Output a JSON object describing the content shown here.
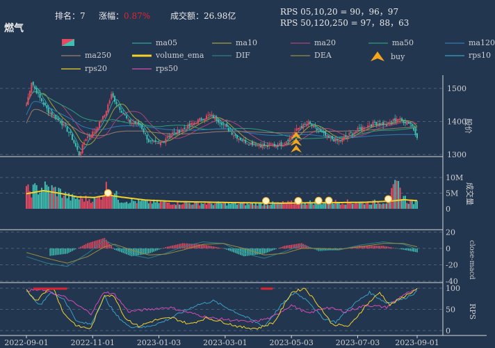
{
  "header": {
    "rank_label": "排名：",
    "rank_value": "7",
    "change_label": "涨幅：",
    "change_value": "0.87%",
    "turnover_label": "成交额：",
    "turnover_value": "26.98亿",
    "rps_line1": "RPS 05,10,20 = 90，96，97",
    "rps_line2": "RPS 50,120,250 = 97，88，63"
  },
  "chart_title": "燃气",
  "colors": {
    "background": "#233650",
    "up": "#e8485f",
    "down": "#3fbfb0",
    "change_red": "#e0242f",
    "volume_ema": "#f5d22a",
    "buy": "#f4a71d"
  },
  "legend": [
    {
      "label": "",
      "color": "#e8485f",
      "kind": "box"
    },
    {
      "label": "ma05",
      "color": "#2fa7a0",
      "kind": "line"
    },
    {
      "label": "ma10",
      "color": "#a3a23a",
      "kind": "line"
    },
    {
      "label": "ma20",
      "color": "#b2427a",
      "kind": "line"
    },
    {
      "label": "ma50",
      "color": "#2aa178",
      "kind": "line"
    },
    {
      "label": "ma120",
      "color": "#2f7bb8",
      "kind": "line"
    },
    {
      "label": "ma250",
      "color": "#9c7c6d",
      "kind": "line"
    },
    {
      "label": "volume_ema",
      "color": "#f5d22a",
      "kind": "thick"
    },
    {
      "label": "DIF",
      "color": "#2b7f8c",
      "kind": "line"
    },
    {
      "label": "DEA",
      "color": "#9a8c3c",
      "kind": "line"
    },
    {
      "label": "buy",
      "color": "#f4a71d",
      "kind": "marker"
    },
    {
      "label": "rps10",
      "color": "#3aa0c8",
      "kind": "line"
    },
    {
      "label": "rps20",
      "color": "#f5d22a",
      "kind": "line"
    },
    {
      "label": "rps50",
      "color": "#d84ab8",
      "kind": "line"
    }
  ],
  "chart_data": {
    "type": "candlestick",
    "x_ticks": [
      "2022-09-01",
      "2022-11-01",
      "2023-01-03",
      "2023-03-01",
      "2023-05-03",
      "2023-07-03",
      "2023-09-01"
    ],
    "price_axis": {
      "label": "股价",
      "ticks": [
        1300,
        1400,
        1500
      ],
      "ylim": [
        1260,
        1540
      ]
    },
    "volume_axis": {
      "label": "成交量",
      "ticks": [
        "0",
        "5M",
        "10M"
      ],
      "ylim": [
        0,
        10
      ]
    },
    "macd_axis": {
      "label": "close-macd",
      "ticks": [
        20,
        0,
        -20,
        -40
      ],
      "ylim": [
        -40,
        22
      ]
    },
    "rps_axis": {
      "label": "RPS",
      "ticks": [
        100,
        50,
        0
      ],
      "ylim": [
        -5,
        110
      ]
    },
    "price_anchors": [
      [
        0,
        1450
      ],
      [
        3,
        1520
      ],
      [
        8,
        1470
      ],
      [
        13,
        1430
      ],
      [
        20,
        1400
      ],
      [
        26,
        1360
      ],
      [
        31,
        1300
      ],
      [
        35,
        1350
      ],
      [
        40,
        1370
      ],
      [
        46,
        1420
      ],
      [
        50,
        1480
      ],
      [
        55,
        1440
      ],
      [
        60,
        1400
      ],
      [
        67,
        1390
      ],
      [
        72,
        1340
      ],
      [
        78,
        1330
      ],
      [
        84,
        1360
      ],
      [
        92,
        1375
      ],
      [
        100,
        1400
      ],
      [
        108,
        1420
      ],
      [
        115,
        1395
      ],
      [
        122,
        1360
      ],
      [
        128,
        1340
      ],
      [
        135,
        1330
      ],
      [
        142,
        1325
      ],
      [
        150,
        1330
      ],
      [
        155,
        1350
      ],
      [
        160,
        1380
      ],
      [
        166,
        1395
      ],
      [
        172,
        1370
      ],
      [
        178,
        1350
      ],
      [
        184,
        1340
      ],
      [
        190,
        1360
      ],
      [
        197,
        1380
      ],
      [
        205,
        1395
      ],
      [
        212,
        1390
      ],
      [
        218,
        1410
      ],
      [
        222,
        1400
      ],
      [
        226,
        1395
      ],
      [
        230,
        1355
      ]
    ],
    "volume_anchors": [
      [
        0,
        5.5
      ],
      [
        10,
        6.8
      ],
      [
        18,
        5.8
      ],
      [
        26,
        3.5
      ],
      [
        35,
        3.2
      ],
      [
        42,
        3.0
      ],
      [
        48,
        7.5
      ],
      [
        55,
        2.8
      ],
      [
        70,
        2.2
      ],
      [
        100,
        1.8
      ],
      [
        140,
        1.6
      ],
      [
        160,
        2.0
      ],
      [
        185,
        2.2
      ],
      [
        200,
        2.0
      ],
      [
        212,
        2.3
      ],
      [
        218,
        7.5
      ],
      [
        224,
        2.5
      ],
      [
        230,
        2.0
      ]
    ],
    "volume_ema_anchors": [
      [
        0,
        4.8
      ],
      [
        10,
        5.8
      ],
      [
        20,
        4.9
      ],
      [
        30,
        3.8
      ],
      [
        40,
        3.6
      ],
      [
        48,
        4.4
      ],
      [
        55,
        3.8
      ],
      [
        70,
        2.8
      ],
      [
        90,
        2.3
      ],
      [
        120,
        2.0
      ],
      [
        150,
        1.8
      ],
      [
        165,
        1.9
      ],
      [
        185,
        2.0
      ],
      [
        200,
        2.1
      ],
      [
        215,
        2.5
      ],
      [
        222,
        2.9
      ],
      [
        230,
        2.6
      ]
    ],
    "volume_markers": [
      48,
      141,
      160,
      172,
      178,
      213
    ],
    "dif_anchors": [
      [
        0,
        -10
      ],
      [
        12,
        -18
      ],
      [
        24,
        -22
      ],
      [
        36,
        -6
      ],
      [
        46,
        10
      ],
      [
        52,
        4
      ],
      [
        62,
        -8
      ],
      [
        72,
        -12
      ],
      [
        82,
        -6
      ],
      [
        92,
        2
      ],
      [
        104,
        8
      ],
      [
        116,
        6
      ],
      [
        128,
        -6
      ],
      [
        140,
        -12
      ],
      [
        152,
        -4
      ],
      [
        162,
        4
      ],
      [
        172,
        -2
      ],
      [
        184,
        -2
      ],
      [
        196,
        4
      ],
      [
        210,
        8
      ],
      [
        222,
        5
      ],
      [
        230,
        -1
      ]
    ],
    "dea_anchors": [
      [
        0,
        -5
      ],
      [
        12,
        -12
      ],
      [
        24,
        -18
      ],
      [
        36,
        -10
      ],
      [
        46,
        2
      ],
      [
        52,
        5
      ],
      [
        62,
        -2
      ],
      [
        72,
        -8
      ],
      [
        82,
        -7
      ],
      [
        92,
        -2
      ],
      [
        104,
        5
      ],
      [
        116,
        6
      ],
      [
        128,
        0
      ],
      [
        140,
        -8
      ],
      [
        152,
        -6
      ],
      [
        162,
        0
      ],
      [
        172,
        0
      ],
      [
        184,
        -1
      ],
      [
        196,
        2
      ],
      [
        210,
        6
      ],
      [
        222,
        6
      ],
      [
        230,
        2
      ]
    ],
    "rps10_anchors": [
      [
        0,
        95
      ],
      [
        8,
        60
      ],
      [
        14,
        90
      ],
      [
        22,
        75
      ],
      [
        30,
        20
      ],
      [
        38,
        15
      ],
      [
        46,
        80
      ],
      [
        52,
        40
      ],
      [
        60,
        10
      ],
      [
        70,
        8
      ],
      [
        80,
        20
      ],
      [
        90,
        40
      ],
      [
        100,
        60
      ],
      [
        110,
        70
      ],
      [
        120,
        50
      ],
      [
        130,
        30
      ],
      [
        140,
        10
      ],
      [
        150,
        60
      ],
      [
        158,
        90
      ],
      [
        166,
        70
      ],
      [
        174,
        30
      ],
      [
        182,
        20
      ],
      [
        192,
        60
      ],
      [
        202,
        90
      ],
      [
        212,
        65
      ],
      [
        222,
        75
      ],
      [
        230,
        92
      ]
    ],
    "rps20_anchors": [
      [
        0,
        95
      ],
      [
        6,
        70
      ],
      [
        10,
        90
      ],
      [
        16,
        100
      ],
      [
        22,
        40
      ],
      [
        30,
        10
      ],
      [
        38,
        5
      ],
      [
        46,
        85
      ],
      [
        52,
        80
      ],
      [
        58,
        30
      ],
      [
        66,
        10
      ],
      [
        76,
        25
      ],
      [
        86,
        30
      ],
      [
        96,
        15
      ],
      [
        106,
        30
      ],
      [
        116,
        20
      ],
      [
        126,
        8
      ],
      [
        136,
        5
      ],
      [
        146,
        20
      ],
      [
        156,
        90
      ],
      [
        164,
        100
      ],
      [
        172,
        60
      ],
      [
        180,
        15
      ],
      [
        190,
        10
      ],
      [
        200,
        60
      ],
      [
        208,
        90
      ],
      [
        214,
        60
      ],
      [
        222,
        80
      ],
      [
        230,
        98
      ]
    ],
    "rps50_anchors": [
      [
        0,
        95
      ],
      [
        8,
        96
      ],
      [
        14,
        90
      ],
      [
        22,
        80
      ],
      [
        30,
        60
      ],
      [
        38,
        40
      ],
      [
        46,
        92
      ],
      [
        52,
        85
      ],
      [
        60,
        45
      ],
      [
        72,
        50
      ],
      [
        84,
        55
      ],
      [
        96,
        42
      ],
      [
        108,
        30
      ],
      [
        120,
        25
      ],
      [
        132,
        20
      ],
      [
        144,
        30
      ],
      [
        156,
        60
      ],
      [
        166,
        40
      ],
      [
        176,
        55
      ],
      [
        188,
        45
      ],
      [
        200,
        60
      ],
      [
        212,
        55
      ],
      [
        222,
        85
      ],
      [
        230,
        96
      ]
    ],
    "buy_points": [
      1310,
      1330,
      1350
    ]
  }
}
